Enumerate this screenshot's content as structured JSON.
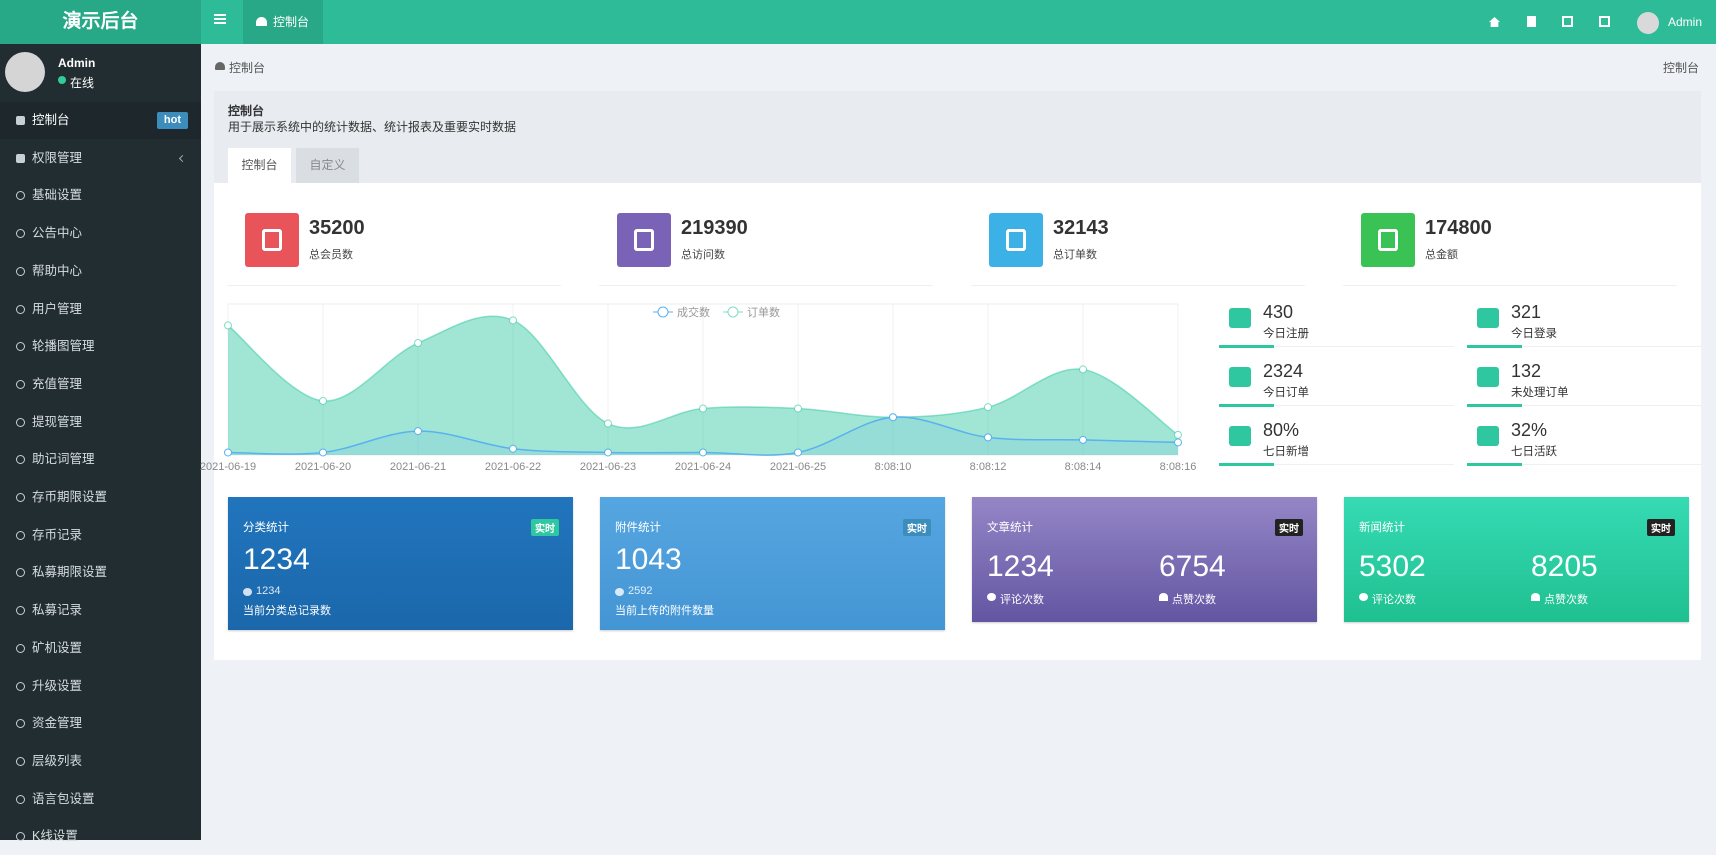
{
  "header": {
    "logo": "演示后台",
    "tab": "控制台",
    "user": "Admin"
  },
  "sidebar": {
    "user": "Admin",
    "status": "在线",
    "menu": [
      {
        "label": "控制台",
        "badge": "hot"
      },
      {
        "label": "权限管理"
      },
      {
        "label": "基础设置"
      },
      {
        "label": "公告中心"
      },
      {
        "label": "帮助中心"
      },
      {
        "label": "用户管理"
      },
      {
        "label": "轮播图管理"
      },
      {
        "label": "充值管理"
      },
      {
        "label": "提现管理"
      },
      {
        "label": "助记词管理"
      },
      {
        "label": "存币期限设置"
      },
      {
        "label": "存币记录"
      },
      {
        "label": "私募期限设置"
      },
      {
        "label": "私募记录"
      },
      {
        "label": "矿机设置"
      },
      {
        "label": "升级设置"
      },
      {
        "label": "资金管理"
      },
      {
        "label": "层级列表"
      },
      {
        "label": "语言包设置"
      },
      {
        "label": "K线设置"
      }
    ]
  },
  "breadcrumb": {
    "current": "控制台",
    "right": "控制台"
  },
  "panel": {
    "title": "控制台",
    "description": "用于展示系统中的统计数据、统计报表及重要实时数据",
    "tabs": [
      "控制台",
      "自定义"
    ]
  },
  "stats": [
    {
      "value": 35200,
      "label": "总会员数",
      "color": "#e9545a"
    },
    {
      "value": 219390,
      "label": "总访问数",
      "color": "#7a62b6"
    },
    {
      "value": 32143,
      "label": "总订单数",
      "color": "#3bb1e5"
    },
    {
      "value": 174800,
      "label": "总金额",
      "color": "#3bc255"
    }
  ],
  "chart": {
    "type": "line",
    "categories": [
      "2021-06-19",
      "2021-06-20",
      "2021-06-21",
      "2021-06-22",
      "2021-06-23",
      "2021-06-24",
      "2021-06-25",
      "8:08:10",
      "8:08:12",
      "8:08:14",
      "8:08:16"
    ],
    "ylim": [
      0,
      120
    ],
    "series": [
      {
        "name": "成交数",
        "color": "#5ab1ef",
        "values": [
          2,
          2,
          19,
          5,
          2,
          2,
          2,
          30,
          14,
          12,
          10
        ]
      },
      {
        "name": "订单数",
        "color": "#2ec7a0",
        "values": [
          103,
          43,
          89,
          107,
          25,
          37,
          37,
          30,
          38,
          68,
          16
        ]
      }
    ]
  },
  "quick_stats": [
    {
      "value": 430,
      "label": "今日注册"
    },
    {
      "value": 321,
      "label": "今日登录"
    },
    {
      "value": 2324,
      "label": "今日订单"
    },
    {
      "value": 132,
      "label": "未处理订单"
    },
    {
      "value": "80%",
      "label": "七日新增"
    },
    {
      "value": "32%",
      "label": "七日活跃"
    }
  ],
  "cards": [
    {
      "title": "分类统计",
      "badge": "实时",
      "value": 1234,
      "count": 1234,
      "label": "当前分类总记录数"
    },
    {
      "title": "附件统计",
      "badge": "实时",
      "value": 1043,
      "count": 2592,
      "label": "当前上传的附件数量"
    },
    {
      "title": "文章统计",
      "badge": "实时",
      "items": [
        {
          "value": 1234,
          "label": "评论次数"
        },
        {
          "value": 6754,
          "label": "点赞次数"
        }
      ]
    },
    {
      "title": "新闻统计",
      "badge": "实时",
      "items": [
        {
          "value": 5302,
          "label": "评论次数"
        },
        {
          "value": 8205,
          "label": "点赞次数"
        }
      ]
    }
  ]
}
